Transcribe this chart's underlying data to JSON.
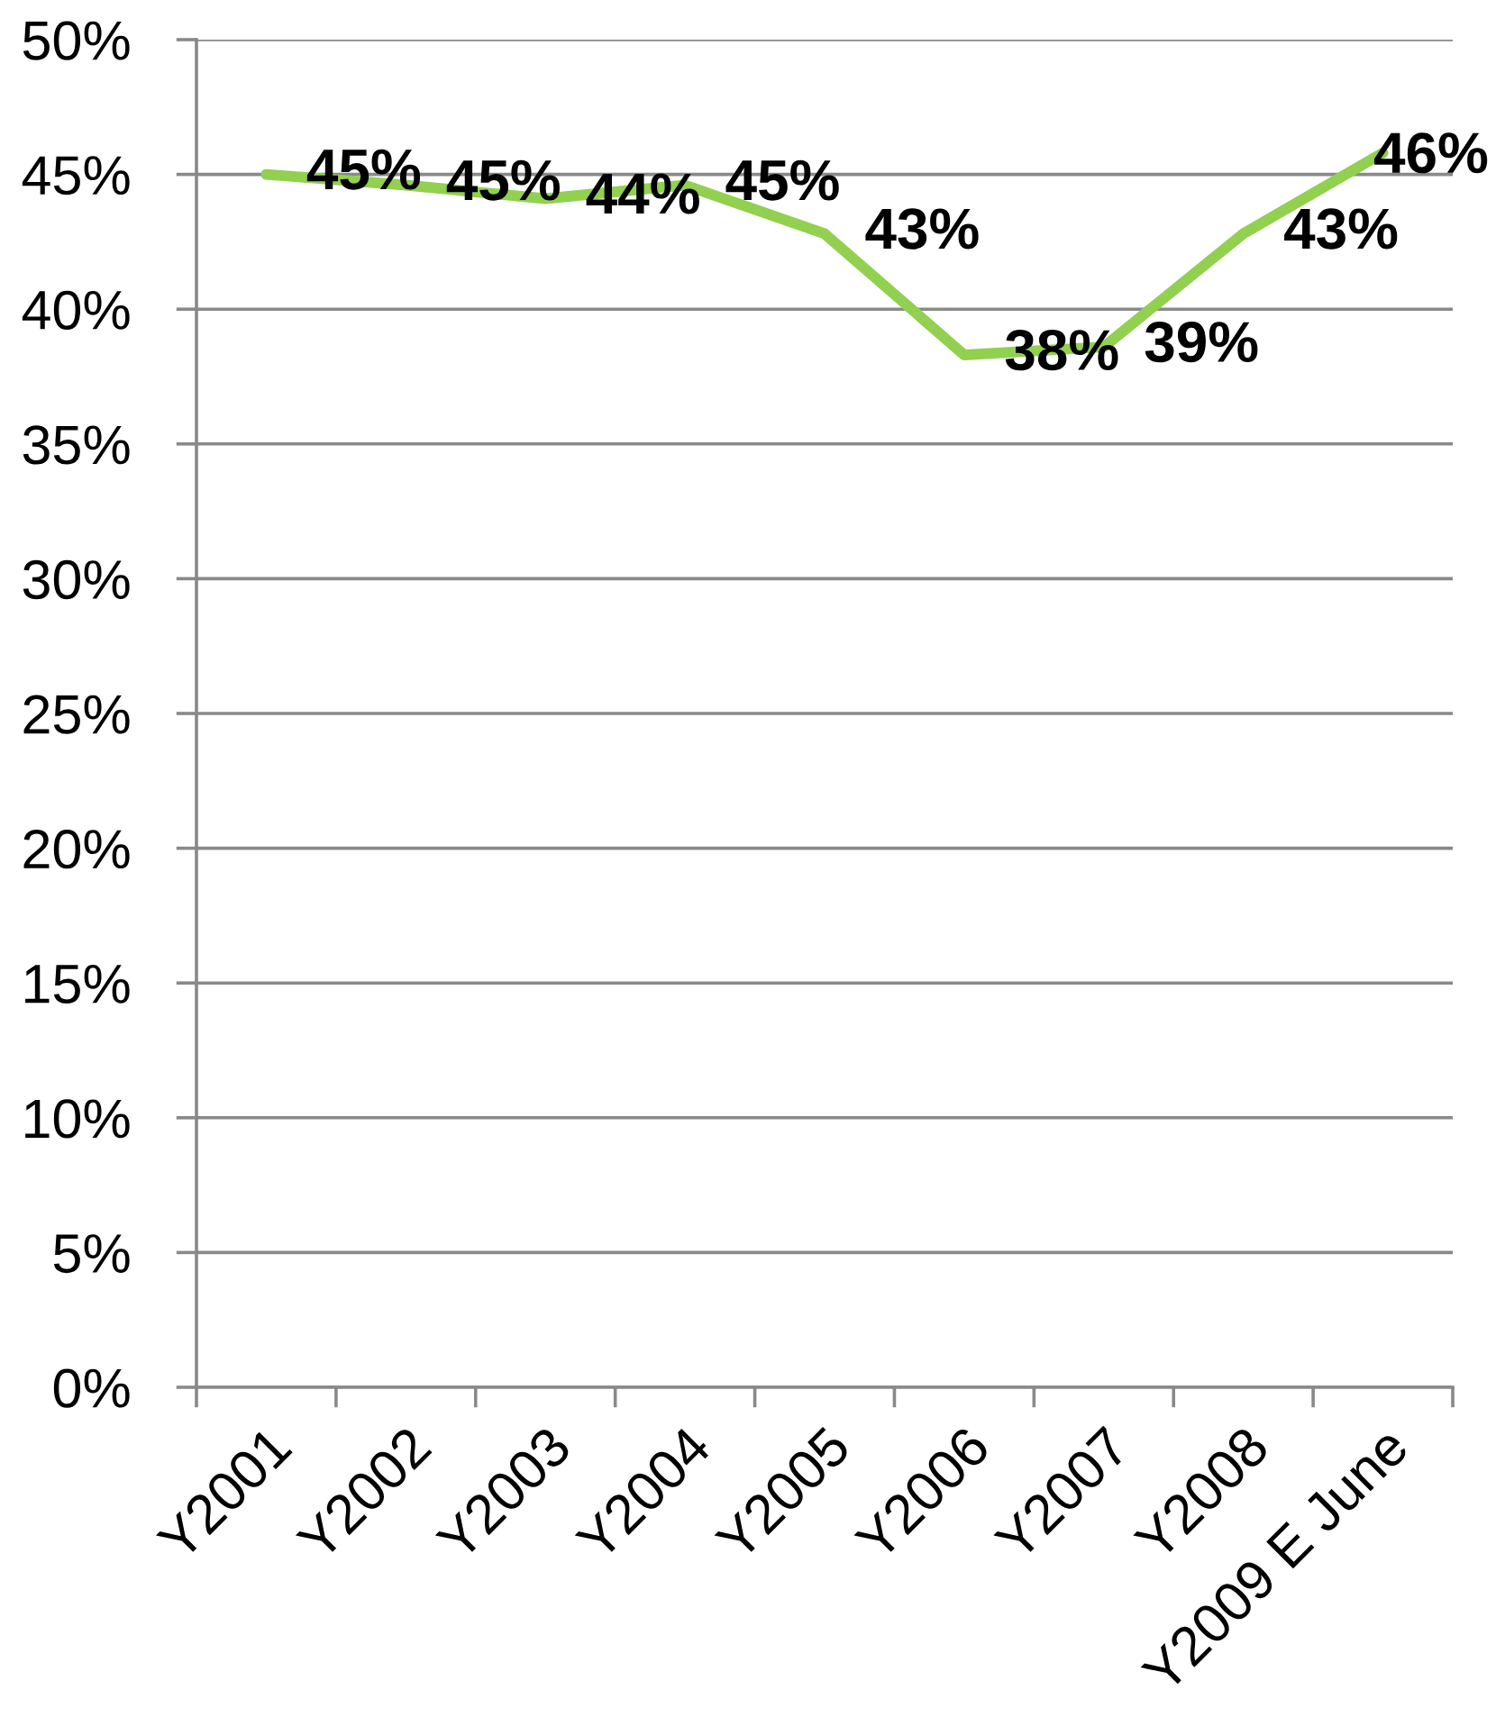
{
  "chart_data": {
    "type": "line",
    "categories": [
      "Y2001",
      "Y2002",
      "Y2003",
      "Y2004",
      "Y2005",
      "Y2006",
      "Y2007",
      "Y2008",
      "Y2009 E June"
    ],
    "series": [
      {
        "color": "#92d050",
        "values": [
          45.0,
          44.6,
          44.1,
          44.6,
          42.8,
          38.3,
          38.6,
          42.8,
          45.8
        ],
        "value_labels": [
          "45%",
          "45%",
          "44%",
          "45%",
          "43%",
          "38%",
          "39%",
          "43%",
          "46%"
        ]
      }
    ],
    "ylim": [
      0,
      50
    ],
    "yticks": [
      {
        "value": 0,
        "label": "0%"
      },
      {
        "value": 5,
        "label": "5%"
      },
      {
        "value": 10,
        "label": "10%"
      },
      {
        "value": 15,
        "label": "15%"
      },
      {
        "value": 20,
        "label": "20%"
      },
      {
        "value": 25,
        "label": "25%"
      },
      {
        "value": 30,
        "label": "30%"
      },
      {
        "value": 35,
        "label": "35%"
      },
      {
        "value": 40,
        "label": "40%"
      },
      {
        "value": 45,
        "label": "45%"
      },
      {
        "value": 50,
        "label": "50%"
      }
    ],
    "grid": "y",
    "line_style": "solid"
  }
}
